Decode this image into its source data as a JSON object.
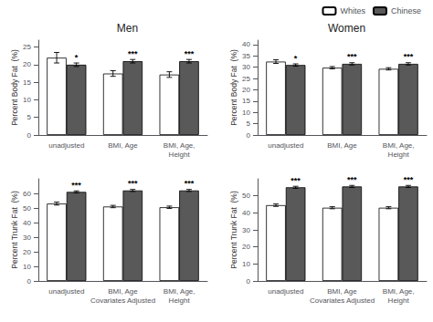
{
  "chart_data": [
    {
      "type": "bar",
      "title": "Men",
      "ylabel": "Percent Body Fat  (%)",
      "categories": [
        "unadjusted",
        "BMI, Age",
        "BMI, Age,\nHeight"
      ],
      "series": [
        {
          "name": "Whites",
          "color": "#FFFFFF",
          "values": [
            22.0,
            17.5,
            17.2
          ],
          "errors": [
            1.5,
            0.8,
            0.8
          ]
        },
        {
          "name": "Chinese",
          "color": "#595959",
          "values": [
            20.0,
            21.0,
            21.0
          ],
          "errors": [
            0.5,
            0.5,
            0.5
          ],
          "annotations": [
            "*",
            "***",
            "***"
          ]
        }
      ],
      "ylim": [
        0,
        27
      ],
      "yticks": [
        0,
        5,
        10,
        15,
        20,
        25
      ],
      "grid": false,
      "legend": "upper right"
    },
    {
      "type": "bar",
      "title": "Women",
      "ylabel": "Percent Body Fat  (%)",
      "categories": [
        "unadjusted",
        "BMI, Age",
        "BMI, Age,\nHeight"
      ],
      "series": [
        {
          "name": "Whites",
          "color": "#FFFFFF",
          "values": [
            32.5,
            29.8,
            29.3
          ],
          "errors": [
            0.8,
            0.5,
            0.5
          ]
        },
        {
          "name": "Chinese",
          "color": "#595959",
          "values": [
            31.0,
            31.5,
            31.5
          ],
          "errors": [
            0.5,
            0.5,
            0.5
          ],
          "annotations": [
            "*",
            "***",
            "***"
          ]
        }
      ],
      "ylim": [
        0,
        42
      ],
      "yticks": [
        0,
        5,
        10,
        15,
        20,
        25,
        30,
        35,
        40
      ],
      "grid": false
    },
    {
      "type": "bar",
      "ylabel": "Percent Trunk Fat  (%)",
      "categories": [
        "unadjusted",
        "BMI, Age\nCovariates Adjusted",
        "BMI, Age,\nHeight"
      ],
      "series": [
        {
          "name": "Whites",
          "color": "#FFFFFF",
          "values": [
            53.0,
            51.0,
            50.5
          ],
          "errors": [
            1.0,
            0.8,
            0.8
          ]
        },
        {
          "name": "Chinese",
          "color": "#595959",
          "values": [
            61.0,
            62.0,
            62.0
          ],
          "errors": [
            0.7,
            0.7,
            0.7
          ],
          "annotations": [
            "***",
            "***",
            "***"
          ]
        }
      ],
      "ylim": [
        0,
        70
      ],
      "yticks": [
        0,
        10,
        20,
        30,
        40,
        50,
        60
      ],
      "grid": false
    },
    {
      "type": "bar",
      "ylabel": "Percent Trunk Fat  (%)",
      "categories": [
        "unadjusted",
        "BMI, Age\nCovariates Adjusted",
        "BMI, Age,\nHeight"
      ],
      "series": [
        {
          "name": "Whites",
          "color": "#FFFFFF",
          "values": [
            44.5,
            43.0,
            43.0
          ],
          "errors": [
            0.7,
            0.6,
            0.6
          ]
        },
        {
          "name": "Chinese",
          "color": "#595959",
          "values": [
            55.0,
            55.5,
            55.5
          ],
          "errors": [
            0.6,
            0.6,
            0.6
          ],
          "annotations": [
            "***",
            "***",
            "***"
          ]
        }
      ],
      "ylim": [
        0,
        60
      ],
      "yticks": [
        0,
        10,
        20,
        30,
        40,
        50
      ],
      "grid": false
    }
  ]
}
